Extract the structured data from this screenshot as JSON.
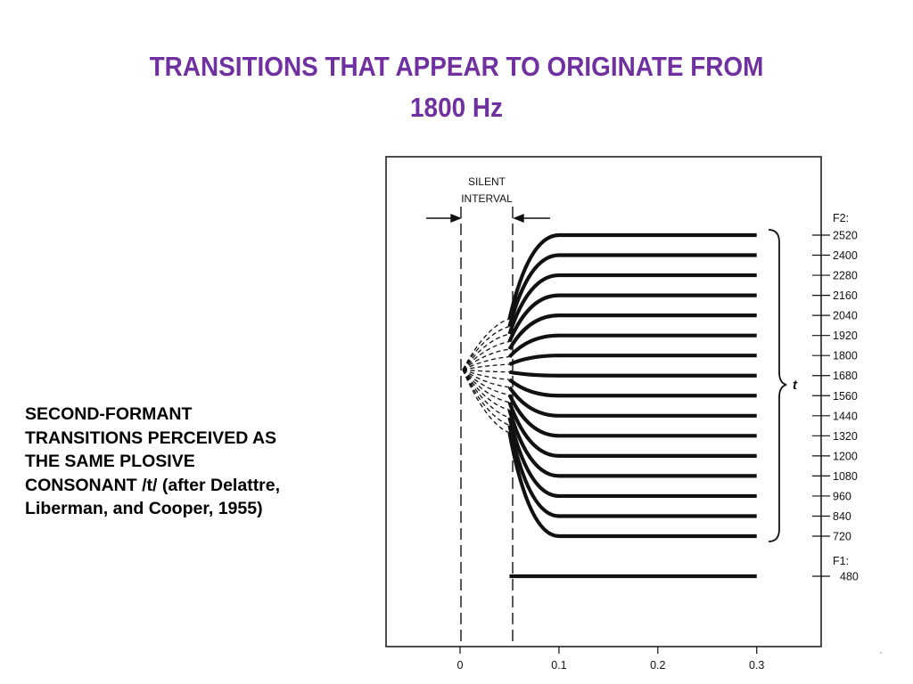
{
  "title": {
    "line1": "TRANSITIONS THAT APPEAR TO ORIGINATE FROM",
    "line2": "1800 Hz"
  },
  "caption": {
    "lines": [
      "SECOND-FORMANT",
      "TRANSITIONS PERCEIVED AS",
      "THE SAME PLOSIVE",
      "CONSONANT /t/  (after Delattre,",
      "Liberman, and Cooper, 1955)"
    ]
  },
  "figure": {
    "silent_interval_label": [
      "SILENT",
      "INTERVAL"
    ],
    "f2_label": "F2:",
    "f1_label": "F1:",
    "bracket_label": "t",
    "x_ticks": [
      "0",
      "0.1",
      "0.2",
      "0.3"
    ],
    "f2_values": [
      2520,
      2400,
      2280,
      2160,
      2040,
      1920,
      1800,
      1680,
      1560,
      1440,
      1320,
      1200,
      1080,
      960,
      840,
      720
    ],
    "f1_value": 480,
    "locus_hz": 1800,
    "silent_interval_end_s": 0.05,
    "transition_end_s": 0.1,
    "steady_end_s": 0.3
  }
}
